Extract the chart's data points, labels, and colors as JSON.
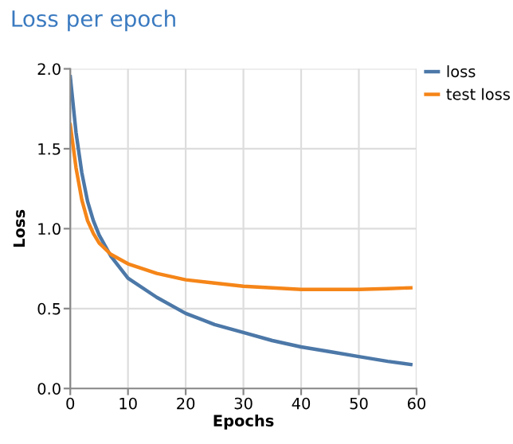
{
  "chart_data": {
    "type": "line",
    "title": "Loss per epoch",
    "xlabel": "Epochs",
    "ylabel": "Loss",
    "xlim": [
      0,
      60
    ],
    "xticks": [
      0,
      10,
      20,
      30,
      40,
      50,
      60
    ],
    "ylim": [
      0,
      2
    ],
    "yticks": [
      {
        "value": 0,
        "label": "0.0"
      },
      {
        "value": 0.5,
        "label": "0.5"
      },
      {
        "value": 1,
        "label": "1.0"
      },
      {
        "value": 1.5,
        "label": "1.5"
      },
      {
        "value": 2,
        "label": "2.0"
      }
    ],
    "grid": true,
    "legend": "top right",
    "marker": "none",
    "line_style": "solid",
    "series": [
      {
        "name": "loss",
        "color": "#4c78a8",
        "x": [
          0,
          1,
          2,
          3,
          4,
          5,
          7,
          10,
          15,
          20,
          25,
          30,
          35,
          40,
          45,
          50,
          55,
          59
        ],
        "values": [
          1.95,
          1.6,
          1.35,
          1.17,
          1.05,
          0.96,
          0.83,
          0.69,
          0.57,
          0.47,
          0.4,
          0.35,
          0.3,
          0.26,
          0.23,
          0.2,
          0.17,
          0.15
        ]
      },
      {
        "name": "test loss",
        "color": "#f58518",
        "x": [
          0,
          1,
          2,
          3,
          4,
          5,
          7,
          10,
          15,
          20,
          25,
          30,
          35,
          40,
          45,
          50,
          55,
          59
        ],
        "values": [
          1.65,
          1.38,
          1.18,
          1.05,
          0.97,
          0.91,
          0.84,
          0.78,
          0.72,
          0.68,
          0.66,
          0.64,
          0.63,
          0.62,
          0.62,
          0.62,
          0.625,
          0.63
        ]
      }
    ]
  }
}
